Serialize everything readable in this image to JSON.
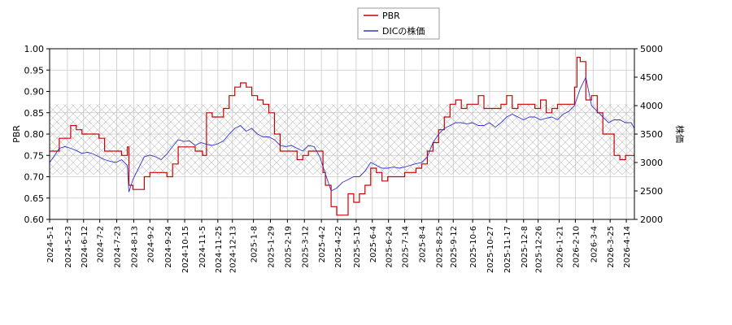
{
  "chart_data": {
    "type": "line",
    "legend": {
      "placement": "top-center",
      "entries": [
        {
          "name": "PBR",
          "color": "#cc0000"
        },
        {
          "name": "DICの株価",
          "color": "#3333cc"
        }
      ]
    },
    "ylabel_left": "PBR",
    "ylabel_right": "株価",
    "ylim_left": [
      0.6,
      1.0
    ],
    "ylim_right": [
      2000,
      5000
    ],
    "yticks_left": [
      "0.60",
      "0.65",
      "0.70",
      "0.75",
      "0.80",
      "0.85",
      "0.90",
      "0.95",
      "1.00"
    ],
    "yticks_right": [
      "2000",
      "2500",
      "3000",
      "3500",
      "4000",
      "4500",
      "5000"
    ],
    "xticks": [
      "2024-5-1",
      "2024-5-23",
      "2024-6-12",
      "2024-7-2",
      "2024-7-23",
      "2024-8-13",
      "2024-9-2",
      "2024-9-24",
      "2024-10-15",
      "2024-11-5",
      "2024-11-25",
      "2024-12-13",
      "2025-1-8",
      "2025-1-29",
      "2025-2-19",
      "2025-3-12",
      "2025-4-2",
      "2025-4-22",
      "2025-5-15",
      "2025-6-4",
      "2025-6-24",
      "2025-7-14",
      "2025-8-4",
      "2025-8-25",
      "2025-9-12",
      "2025-10-6",
      "2025-10-27",
      "2025-11-17",
      "2025-12-8",
      "2025-12-26",
      "2026-1-21",
      "2026-2-10",
      "2026-3-4",
      "2026-3-25",
      "2026-4-14"
    ],
    "grid": true,
    "hatched_band_left": [
      0.705,
      0.87
    ],
    "series": [
      {
        "name": "PBR",
        "axis": "left",
        "color": "#cc0000",
        "step": true,
        "x": [
          "2024-5-1",
          "2024-5-6",
          "2024-5-13",
          "2024-5-20",
          "2024-5-27",
          "2024-6-3",
          "2024-6-10",
          "2024-6-17",
          "2024-6-24",
          "2024-7-1",
          "2024-7-8",
          "2024-7-15",
          "2024-7-22",
          "2024-7-29",
          "2024-8-5",
          "2024-8-7",
          "2024-8-12",
          "2024-8-19",
          "2024-8-26",
          "2024-9-2",
          "2024-9-9",
          "2024-9-16",
          "2024-9-23",
          "2024-9-30",
          "2024-10-7",
          "2024-10-14",
          "2024-10-21",
          "2024-10-28",
          "2024-11-4",
          "2024-11-6",
          "2024-11-11",
          "2024-11-18",
          "2024-11-25",
          "2024-12-2",
          "2024-12-9",
          "2024-12-16",
          "2024-12-23",
          "2024-12-30",
          "2025-1-6",
          "2025-1-13",
          "2025-1-20",
          "2025-1-27",
          "2025-2-3",
          "2025-2-10",
          "2025-2-17",
          "2025-2-24",
          "2025-3-3",
          "2025-3-10",
          "2025-3-17",
          "2025-3-24",
          "2025-3-31",
          "2025-4-4",
          "2025-4-7",
          "2025-4-14",
          "2025-4-21",
          "2025-4-28",
          "2025-5-5",
          "2025-5-12",
          "2025-5-19",
          "2025-5-26",
          "2025-6-2",
          "2025-6-9",
          "2025-6-16",
          "2025-6-23",
          "2025-6-30",
          "2025-7-7",
          "2025-7-14",
          "2025-7-21",
          "2025-7-28",
          "2025-8-4",
          "2025-8-11",
          "2025-8-18",
          "2025-8-25",
          "2025-9-1",
          "2025-9-8",
          "2025-9-15",
          "2025-9-22",
          "2025-9-29",
          "2025-10-6",
          "2025-10-13",
          "2025-10-20",
          "2025-10-27",
          "2025-11-3",
          "2025-11-10",
          "2025-11-17",
          "2025-11-24",
          "2025-12-1",
          "2025-12-8",
          "2025-12-15",
          "2025-12-22",
          "2025-12-29",
          "2026-1-5",
          "2026-1-12",
          "2026-1-19",
          "2026-1-26",
          "2026-2-2",
          "2026-2-9",
          "2026-2-12",
          "2026-2-16",
          "2026-2-23",
          "2026-3-2",
          "2026-3-9",
          "2026-3-16",
          "2026-3-23",
          "2026-3-30",
          "2026-4-6",
          "2026-4-13",
          "2026-4-20",
          "2026-4-24"
        ],
        "values": [
          0.76,
          0.76,
          0.79,
          0.79,
          0.82,
          0.81,
          0.8,
          0.8,
          0.8,
          0.79,
          0.76,
          0.76,
          0.76,
          0.75,
          0.77,
          0.68,
          0.67,
          0.67,
          0.7,
          0.71,
          0.71,
          0.71,
          0.7,
          0.73,
          0.77,
          0.77,
          0.77,
          0.76,
          0.76,
          0.75,
          0.85,
          0.84,
          0.84,
          0.86,
          0.89,
          0.91,
          0.92,
          0.91,
          0.89,
          0.88,
          0.87,
          0.85,
          0.8,
          0.76,
          0.76,
          0.76,
          0.74,
          0.75,
          0.76,
          0.76,
          0.76,
          0.71,
          0.68,
          0.63,
          0.61,
          0.61,
          0.66,
          0.64,
          0.66,
          0.68,
          0.72,
          0.71,
          0.69,
          0.7,
          0.7,
          0.7,
          0.71,
          0.71,
          0.72,
          0.73,
          0.76,
          0.78,
          0.81,
          0.84,
          0.87,
          0.88,
          0.86,
          0.87,
          0.87,
          0.89,
          0.86,
          0.86,
          0.86,
          0.87,
          0.89,
          0.86,
          0.87,
          0.87,
          0.87,
          0.86,
          0.88,
          0.85,
          0.86,
          0.87,
          0.87,
          0.87,
          0.91,
          0.98,
          0.97,
          0.88,
          0.89,
          0.85,
          0.8,
          0.8,
          0.75,
          0.74,
          0.75,
          0.75,
          0.75
        ]
      },
      {
        "name": "DICの株価",
        "axis": "right",
        "color": "#3333cc",
        "x": [
          "2024-5-1",
          "2024-5-6",
          "2024-5-13",
          "2024-5-20",
          "2024-5-27",
          "2024-6-3",
          "2024-6-10",
          "2024-6-17",
          "2024-6-24",
          "2024-7-1",
          "2024-7-8",
          "2024-7-15",
          "2024-7-22",
          "2024-7-29",
          "2024-8-5",
          "2024-8-7",
          "2024-8-12",
          "2024-8-19",
          "2024-8-26",
          "2024-9-2",
          "2024-9-9",
          "2024-9-16",
          "2024-9-23",
          "2024-9-30",
          "2024-10-7",
          "2024-10-14",
          "2024-10-21",
          "2024-10-28",
          "2024-11-4",
          "2024-11-11",
          "2024-11-18",
          "2024-11-25",
          "2024-12-2",
          "2024-12-9",
          "2024-12-16",
          "2024-12-23",
          "2024-12-30",
          "2025-1-6",
          "2025-1-13",
          "2025-1-20",
          "2025-1-27",
          "2025-2-3",
          "2025-2-10",
          "2025-2-17",
          "2025-2-24",
          "2025-3-3",
          "2025-3-10",
          "2025-3-17",
          "2025-3-24",
          "2025-3-31",
          "2025-4-7",
          "2025-4-14",
          "2025-4-21",
          "2025-4-28",
          "2025-5-5",
          "2025-5-12",
          "2025-5-19",
          "2025-5-26",
          "2025-6-2",
          "2025-6-9",
          "2025-6-16",
          "2025-6-23",
          "2025-6-30",
          "2025-7-7",
          "2025-7-14",
          "2025-7-21",
          "2025-7-28",
          "2025-8-4",
          "2025-8-11",
          "2025-8-18",
          "2025-8-25",
          "2025-9-1",
          "2025-9-8",
          "2025-9-15",
          "2025-9-22",
          "2025-9-29",
          "2025-10-6",
          "2025-10-13",
          "2025-10-20",
          "2025-10-27",
          "2025-11-3",
          "2025-11-10",
          "2025-11-17",
          "2025-11-24",
          "2025-12-1",
          "2025-12-8",
          "2025-12-15",
          "2025-12-22",
          "2025-12-29",
          "2026-1-5",
          "2026-1-12",
          "2026-1-19",
          "2026-1-26",
          "2026-2-2",
          "2026-2-9",
          "2026-2-16",
          "2026-2-23",
          "2026-3-2",
          "2026-3-9",
          "2026-3-16",
          "2026-3-23",
          "2026-3-30",
          "2026-4-6",
          "2026-4-13",
          "2026-4-20",
          "2026-4-24"
        ],
        "values": [
          3000,
          3100,
          3250,
          3280,
          3250,
          3210,
          3160,
          3180,
          3150,
          3100,
          3050,
          3020,
          3000,
          3050,
          2950,
          2480,
          2700,
          2900,
          3100,
          3130,
          3100,
          3050,
          3150,
          3280,
          3400,
          3370,
          3380,
          3300,
          3350,
          3320,
          3300,
          3330,
          3380,
          3500,
          3600,
          3650,
          3550,
          3600,
          3500,
          3450,
          3450,
          3400,
          3300,
          3280,
          3300,
          3250,
          3200,
          3300,
          3280,
          3100,
          2800,
          2500,
          2550,
          2650,
          2700,
          2750,
          2750,
          2850,
          3000,
          2950,
          2900,
          2900,
          2920,
          2900,
          2920,
          2950,
          2980,
          3000,
          3100,
          3350,
          3500,
          3600,
          3650,
          3700,
          3700,
          3680,
          3700,
          3650,
          3650,
          3700,
          3620,
          3700,
          3800,
          3850,
          3800,
          3750,
          3800,
          3800,
          3750,
          3780,
          3800,
          3750,
          3850,
          3900,
          4000,
          4300,
          4500,
          4000,
          3900,
          3800,
          3700,
          3750,
          3750,
          3700,
          3700,
          3600
        ]
      }
    ]
  }
}
